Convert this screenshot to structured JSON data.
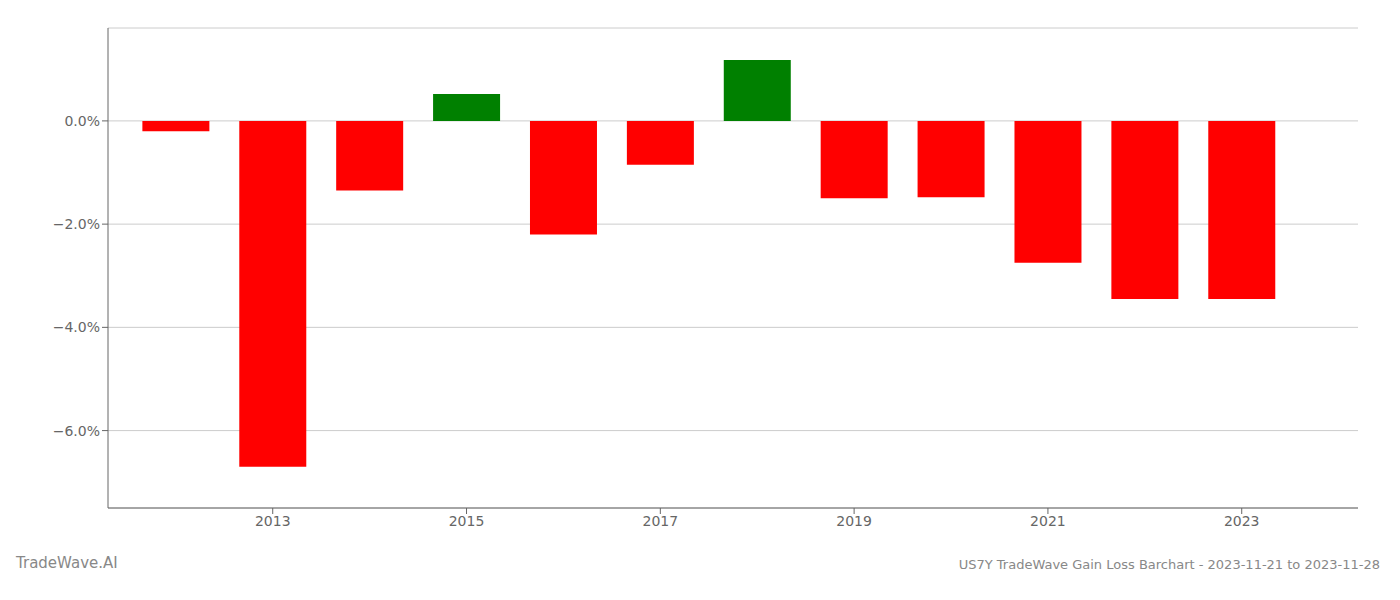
{
  "chart_data": {
    "type": "bar",
    "x": [
      2012,
      2013,
      2014,
      2015,
      2016,
      2017,
      2018,
      2019,
      2020,
      2021,
      2022,
      2023
    ],
    "values": [
      -0.2,
      -6.7,
      -1.35,
      0.52,
      -2.2,
      -0.85,
      1.18,
      -1.5,
      -1.48,
      -2.75,
      -3.45,
      -3.45
    ],
    "colors": [
      "#ff0000",
      "#ff0000",
      "#ff0000",
      "#008000",
      "#ff0000",
      "#ff0000",
      "#008000",
      "#ff0000",
      "#ff0000",
      "#ff0000",
      "#ff0000",
      "#ff0000"
    ],
    "xlim": [
      2011.3,
      2024.2
    ],
    "xticks": [
      2013,
      2015,
      2017,
      2019,
      2021,
      2023
    ],
    "ylim": [
      -7.5,
      1.8
    ],
    "yticks": [
      {
        "value": 0.0,
        "label": "0.0%"
      },
      {
        "value": -2.0,
        "label": "−2.0%"
      },
      {
        "value": -4.0,
        "label": "−4.0%"
      },
      {
        "value": -6.0,
        "label": "−6.0%"
      }
    ],
    "grid": true,
    "annotations": [
      "TradeWave.AI",
      "US7Y TradeWave Gain Loss Barchart - 2023-11-21 to 2023-11-28"
    ]
  }
}
